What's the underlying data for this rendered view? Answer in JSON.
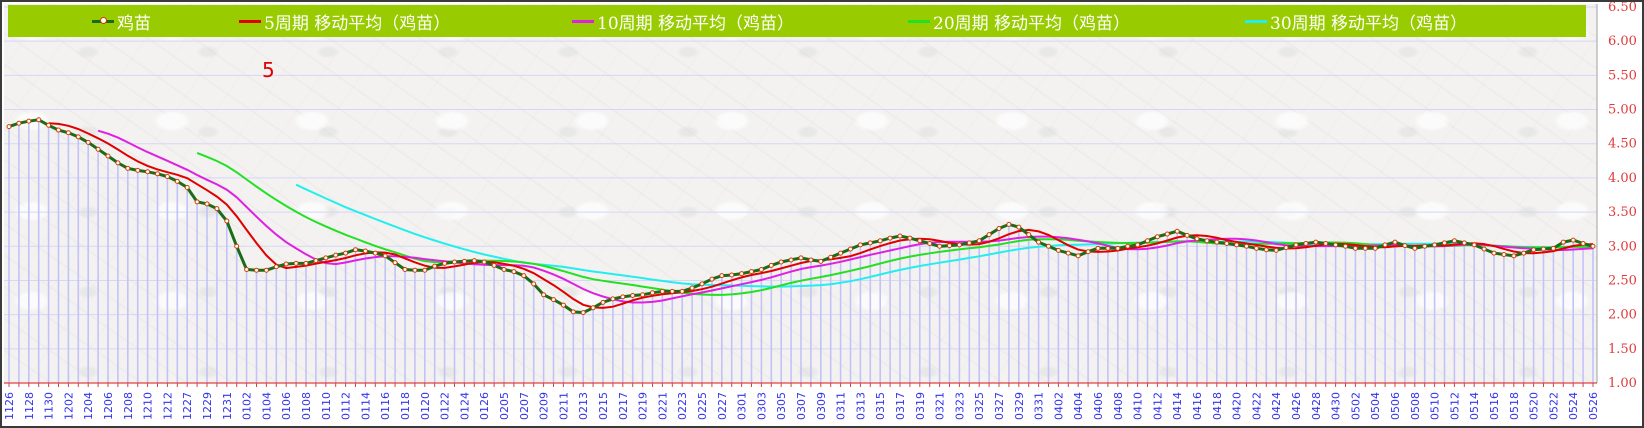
{
  "chart_data": {
    "type": "line",
    "title": "",
    "annotation": "5",
    "xlabel": "",
    "ylabel": "",
    "ylim": [
      1.0,
      6.5
    ],
    "y_ticks": [
      "1.00",
      "1.50",
      "2.00",
      "2.50",
      "3.00",
      "3.50",
      "4.00",
      "4.50",
      "5.00",
      "5.50",
      "6.00",
      "6.50"
    ],
    "y_axis_side": "right",
    "grid": true,
    "legend_position": "top",
    "x_tick_labels": [
      "1126",
      "1128",
      "1130",
      "1202",
      "1204",
      "1206",
      "1208",
      "1210",
      "1212",
      "1227",
      "1229",
      "1231",
      "0102",
      "0104",
      "0106",
      "0108",
      "0110",
      "0112",
      "0114",
      "0116",
      "0118",
      "0120",
      "0122",
      "0124",
      "0126",
      "0205",
      "0207",
      "0209",
      "0211",
      "0213",
      "0215",
      "0217",
      "0219",
      "0221",
      "0223",
      "0225",
      "0227",
      "0301",
      "0303",
      "0305",
      "0307",
      "0309",
      "0311",
      "0313",
      "0315",
      "0317",
      "0319",
      "0321",
      "0323",
      "0325",
      "0327",
      "0329",
      "0331",
      "0402",
      "0404",
      "0406",
      "0408",
      "0410",
      "0412",
      "0414",
      "0416",
      "0418",
      "0420",
      "0422",
      "0424",
      "0426",
      "0428",
      "0430",
      "0502",
      "0504",
      "0506",
      "0508",
      "0510",
      "0512",
      "0514",
      "0516",
      "0518",
      "0520",
      "0522",
      "0524",
      "0526"
    ],
    "x_tick_every": 2,
    "series": [
      {
        "name": "鸡苗",
        "color": "#1a6b1a",
        "marker_color": "#d04000",
        "values": [
          4.75,
          4.8,
          4.83,
          4.85,
          4.77,
          4.7,
          4.66,
          4.6,
          4.52,
          4.42,
          4.32,
          4.22,
          4.14,
          4.11,
          4.09,
          4.06,
          4.02,
          3.95,
          3.86,
          3.65,
          3.62,
          3.55,
          3.37,
          3.0,
          2.66,
          2.65,
          2.65,
          2.7,
          2.74,
          2.75,
          2.75,
          2.79,
          2.83,
          2.87,
          2.9,
          2.95,
          2.93,
          2.9,
          2.86,
          2.76,
          2.66,
          2.65,
          2.65,
          2.71,
          2.75,
          2.77,
          2.78,
          2.79,
          2.77,
          2.72,
          2.66,
          2.63,
          2.57,
          2.45,
          2.29,
          2.22,
          2.14,
          2.04,
          2.03,
          2.1,
          2.18,
          2.23,
          2.26,
          2.28,
          2.29,
          2.32,
          2.34,
          2.34,
          2.34,
          2.39,
          2.45,
          2.52,
          2.57,
          2.58,
          2.6,
          2.63,
          2.66,
          2.72,
          2.77,
          2.8,
          2.83,
          2.8,
          2.78,
          2.84,
          2.9,
          2.96,
          3.02,
          3.05,
          3.08,
          3.12,
          3.15,
          3.12,
          3.08,
          3.04,
          3.0,
          3.01,
          3.02,
          3.05,
          3.08,
          3.17,
          3.26,
          3.32,
          3.28,
          3.17,
          3.06,
          3.0,
          2.94,
          2.9,
          2.86,
          2.92,
          2.97,
          2.97,
          2.97,
          3.0,
          3.02,
          3.08,
          3.14,
          3.18,
          3.22,
          3.16,
          3.11,
          3.08,
          3.06,
          3.04,
          3.02,
          3.0,
          2.97,
          2.95,
          2.94,
          2.98,
          3.02,
          3.04,
          3.06,
          3.04,
          3.02,
          3.0,
          2.97,
          2.97,
          2.97,
          3.02,
          3.06,
          3.01,
          2.97,
          3.0,
          3.02,
          3.05,
          3.08,
          3.05,
          3.02,
          2.96,
          2.9,
          2.88,
          2.86,
          2.9,
          2.95,
          2.96,
          2.97,
          3.06,
          3.09,
          3.04,
          3.0
        ]
      },
      {
        "name": "5周期 移动平均（鸡苗）",
        "color": "#e00000",
        "moving_average_of": "鸡苗",
        "period": 5
      },
      {
        "name": "10周期 移动平均（鸡苗）",
        "color": "#e020e0",
        "moving_average_of": "鸡苗",
        "period": 10
      },
      {
        "name": "20周期 移动平均（鸡苗）",
        "color": "#22e022",
        "moving_average_of": "鸡苗",
        "period": 20
      },
      {
        "name": "30周期 移动平均（鸡苗）",
        "color": "#22eeee",
        "moving_average_of": "鸡苗",
        "period": 30
      }
    ]
  }
}
